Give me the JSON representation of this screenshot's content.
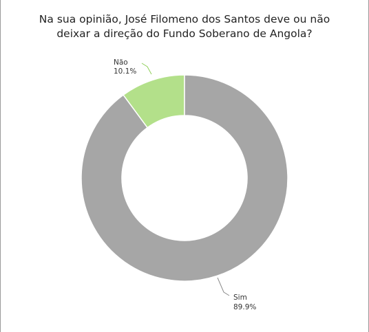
{
  "chart_data": {
    "type": "pie",
    "variant": "donut",
    "title_lines": [
      "Na sua opinião, José Filomeno dos Santos deve ou não",
      "deixar a direção do Fundo Soberano de Angola?"
    ],
    "slices": [
      {
        "label": "Não",
        "value": 10.1,
        "value_text": "10.1%",
        "color": "#b3e08a",
        "leader_color": "#8fcf5a"
      },
      {
        "label": "Sim",
        "value": 89.9,
        "value_text": "89.9%",
        "color": "#a6a6a6",
        "leader_color": "#8a8a8a"
      }
    ],
    "legend": "none"
  }
}
